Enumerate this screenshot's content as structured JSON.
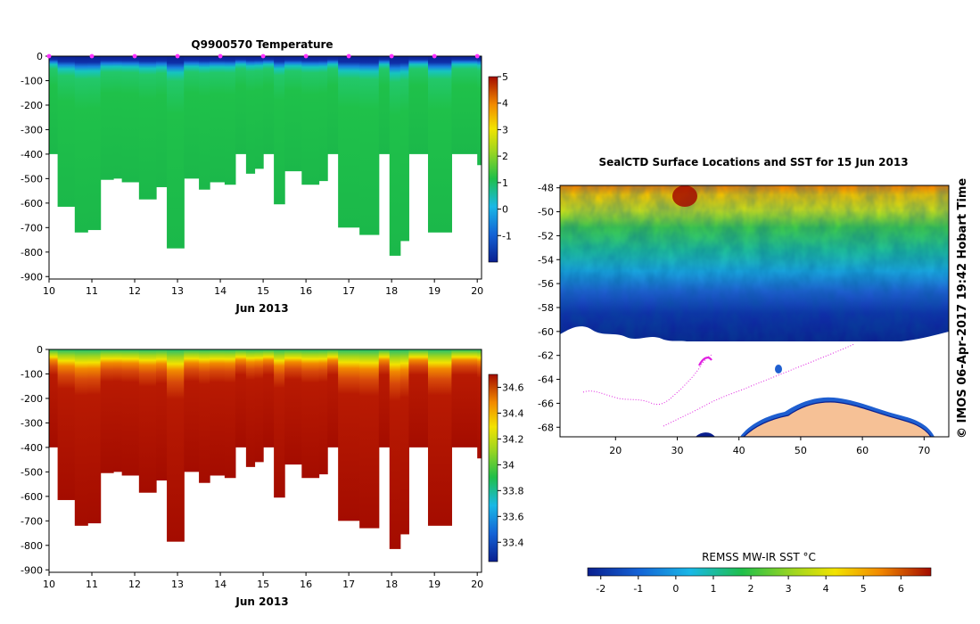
{
  "chart_data": [
    {
      "id": "temperature",
      "type": "heatmap",
      "title": "Q9900570  Temperature",
      "xlabel": "Jun 2013",
      "xticks": [
        "10",
        "11",
        "12",
        "13",
        "14",
        "15",
        "16",
        "17",
        "18",
        "19",
        "20"
      ],
      "xlim": [
        10,
        20.1
      ],
      "yticks": [
        "0",
        "-100",
        "-200",
        "-300",
        "-400",
        "-500",
        "-600",
        "-700",
        "-800",
        "-900"
      ],
      "ylim": [
        0,
        -910
      ],
      "colorbar": {
        "ticks": [
          "5",
          "4",
          "3",
          "2",
          "1",
          "0",
          "-1"
        ],
        "range": [
          -2,
          5
        ]
      },
      "profile_depths": [
        {
          "t0": 10.0,
          "t1": 10.2,
          "depth": 400
        },
        {
          "t0": 10.2,
          "t1": 10.6,
          "depth": 615
        },
        {
          "t0": 10.6,
          "t1": 10.9,
          "depth": 720
        },
        {
          "t0": 10.9,
          "t1": 11.2,
          "depth": 710
        },
        {
          "t0": 11.2,
          "t1": 11.5,
          "depth": 505
        },
        {
          "t0": 11.5,
          "t1": 11.7,
          "depth": 500
        },
        {
          "t0": 11.7,
          "t1": 12.1,
          "depth": 515
        },
        {
          "t0": 12.1,
          "t1": 12.5,
          "depth": 585
        },
        {
          "t0": 12.5,
          "t1": 12.75,
          "depth": 535
        },
        {
          "t0": 12.75,
          "t1": 13.15,
          "depth": 785
        },
        {
          "t0": 13.15,
          "t1": 13.5,
          "depth": 500
        },
        {
          "t0": 13.5,
          "t1": 13.75,
          "depth": 545
        },
        {
          "t0": 13.75,
          "t1": 14.1,
          "depth": 515
        },
        {
          "t0": 14.1,
          "t1": 14.35,
          "depth": 525
        },
        {
          "t0": 14.35,
          "t1": 14.6,
          "depth": 400
        },
        {
          "t0": 14.6,
          "t1": 14.8,
          "depth": 480
        },
        {
          "t0": 14.8,
          "t1": 15.0,
          "depth": 460
        },
        {
          "t0": 15.0,
          "t1": 15.25,
          "depth": 400
        },
        {
          "t0": 15.25,
          "t1": 15.5,
          "depth": 605
        },
        {
          "t0": 15.5,
          "t1": 15.9,
          "depth": 470
        },
        {
          "t0": 15.9,
          "t1": 16.3,
          "depth": 525
        },
        {
          "t0": 16.3,
          "t1": 16.5,
          "depth": 510
        },
        {
          "t0": 16.5,
          "t1": 16.75,
          "depth": 400
        },
        {
          "t0": 16.75,
          "t1": 17.25,
          "depth": 700
        },
        {
          "t0": 17.25,
          "t1": 17.7,
          "depth": 730
        },
        {
          "t0": 17.7,
          "t1": 17.95,
          "depth": 400
        },
        {
          "t0": 17.95,
          "t1": 18.2,
          "depth": 815
        },
        {
          "t0": 18.2,
          "t1": 18.4,
          "depth": 755
        },
        {
          "t0": 18.4,
          "t1": 18.85,
          "depth": 400
        },
        {
          "t0": 18.85,
          "t1": 19.4,
          "depth": 720
        },
        {
          "t0": 19.4,
          "t1": 20.0,
          "depth": 400
        },
        {
          "t0": 20.0,
          "t1": 20.1,
          "depth": 445
        }
      ],
      "surface_markers": [
        10.0,
        11.0,
        12.0,
        13.0,
        14.0,
        15.0,
        16.0,
        17.0,
        18.0,
        19.0,
        20.0
      ]
    },
    {
      "id": "salinity",
      "type": "heatmap",
      "title": "",
      "xlabel": "Jun 2013",
      "xticks": [
        "10",
        "11",
        "12",
        "13",
        "14",
        "15",
        "16",
        "17",
        "18",
        "19",
        "20"
      ],
      "xlim": [
        10,
        20.1
      ],
      "yticks": [
        "0",
        "-100",
        "-200",
        "-300",
        "-400",
        "-500",
        "-600",
        "-700",
        "-800",
        "-900"
      ],
      "ylim": [
        0,
        -910
      ],
      "colorbar": {
        "ticks": [
          "34.6",
          "34.4",
          "34.2",
          "34",
          "33.8",
          "33.6",
          "33.4"
        ],
        "range": [
          33.25,
          34.7
        ]
      }
    },
    {
      "id": "sst-map",
      "type": "heatmap",
      "title": "SealCTD Surface Locations and SST for 15 Jun 2013",
      "xticks": [
        "20",
        "30",
        "40",
        "50",
        "60",
        "70"
      ],
      "xlim": [
        11,
        74
      ],
      "yticks": [
        "-48",
        "-50",
        "-52",
        "-54",
        "-56",
        "-58",
        "-60",
        "-62",
        "-64",
        "-66",
        "-68"
      ],
      "ylim": [
        -47.8,
        -68.8
      ],
      "side_label": "© IMOS 06-Apr-2017 19:42 Hobart Time",
      "colorbar": {
        "label": "REMSS MW-IR SST °C",
        "ticks": [
          "-2",
          "-1",
          "0",
          "1",
          "2",
          "3",
          "4",
          "5",
          "6"
        ],
        "range": [
          -2.35,
          6.8
        ]
      }
    }
  ],
  "colors": {
    "cold": "#0a1f8f",
    "mid": "#1fbf4a",
    "warm": "#f2c200",
    "hot": "#a40c00",
    "land": "#f6c196",
    "track": "#e020e0",
    "surface_marker": "#ff33ff"
  }
}
